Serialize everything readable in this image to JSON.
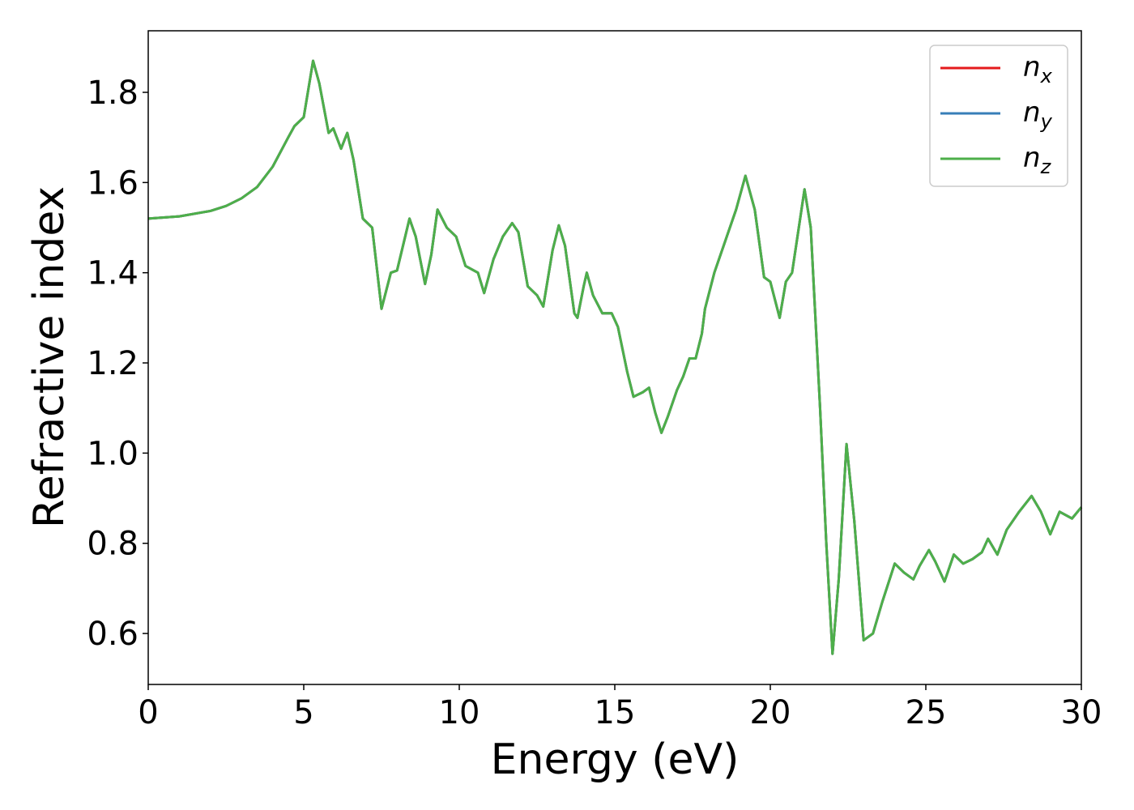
{
  "chart_data": {
    "type": "line",
    "xlabel": "Energy (eV)",
    "ylabel": "Refractive index",
    "x": [
      0,
      1,
      2,
      2.5,
      3,
      3.5,
      4,
      4.5,
      4.7,
      5.0,
      5.3,
      5.5,
      5.8,
      5.95,
      6.2,
      6.4,
      6.6,
      6.9,
      7.2,
      7.5,
      7.8,
      8.0,
      8.4,
      8.6,
      8.9,
      9.1,
      9.3,
      9.6,
      9.9,
      10.2,
      10.6,
      10.8,
      11.1,
      11.4,
      11.7,
      11.9,
      12.2,
      12.5,
      12.7,
      13.0,
      13.2,
      13.4,
      13.7,
      13.8,
      14.0,
      14.1,
      14.3,
      14.6,
      14.9,
      15.1,
      15.4,
      15.6,
      15.9,
      16.1,
      16.3,
      16.5,
      16.7,
      17.0,
      17.2,
      17.4,
      17.6,
      17.8,
      17.9,
      18.2,
      18.6,
      18.9,
      19.2,
      19.5,
      19.8,
      20.0,
      20.3,
      20.5,
      20.7,
      21.1,
      21.3,
      21.6,
      21.8,
      22.0,
      22.2,
      22.45,
      22.7,
      23.0,
      23.3,
      23.6,
      24.0,
      24.3,
      24.6,
      24.8,
      25.1,
      25.3,
      25.6,
      25.9,
      26.2,
      26.5,
      26.8,
      27.0,
      27.3,
      27.6,
      28.0,
      28.4,
      28.7,
      29.0,
      29.3,
      29.7,
      30.0
    ],
    "series": [
      {
        "name": "nx",
        "color": "#e41a1c",
        "values": [
          1.52,
          1.525,
          1.537,
          1.548,
          1.565,
          1.59,
          1.635,
          1.7,
          1.725,
          1.745,
          1.87,
          1.82,
          1.71,
          1.72,
          1.675,
          1.71,
          1.65,
          1.52,
          1.5,
          1.32,
          1.4,
          1.405,
          1.52,
          1.48,
          1.375,
          1.44,
          1.54,
          1.5,
          1.48,
          1.415,
          1.4,
          1.355,
          1.43,
          1.48,
          1.51,
          1.49,
          1.37,
          1.35,
          1.325,
          1.45,
          1.505,
          1.46,
          1.31,
          1.3,
          1.37,
          1.4,
          1.35,
          1.31,
          1.31,
          1.28,
          1.18,
          1.125,
          1.135,
          1.145,
          1.09,
          1.045,
          1.08,
          1.14,
          1.17,
          1.21,
          1.21,
          1.265,
          1.32,
          1.4,
          1.48,
          1.54,
          1.615,
          1.54,
          1.39,
          1.38,
          1.3,
          1.38,
          1.4,
          1.585,
          1.5,
          1.1,
          0.8,
          0.555,
          0.72,
          1.02,
          0.85,
          0.585,
          0.6,
          0.67,
          0.755,
          0.735,
          0.72,
          0.75,
          0.785,
          0.76,
          0.715,
          0.775,
          0.755,
          0.765,
          0.78,
          0.81,
          0.775,
          0.83,
          0.87,
          0.905,
          0.87,
          0.82,
          0.87,
          0.855,
          0.88
        ]
      },
      {
        "name": "ny",
        "color": "#377eb8",
        "values": [
          1.52,
          1.525,
          1.537,
          1.548,
          1.565,
          1.59,
          1.635,
          1.7,
          1.725,
          1.745,
          1.87,
          1.82,
          1.71,
          1.72,
          1.675,
          1.71,
          1.65,
          1.52,
          1.5,
          1.32,
          1.4,
          1.405,
          1.52,
          1.48,
          1.375,
          1.44,
          1.54,
          1.5,
          1.48,
          1.415,
          1.4,
          1.355,
          1.43,
          1.48,
          1.51,
          1.49,
          1.37,
          1.35,
          1.325,
          1.45,
          1.505,
          1.46,
          1.31,
          1.3,
          1.37,
          1.4,
          1.35,
          1.31,
          1.31,
          1.28,
          1.18,
          1.125,
          1.135,
          1.145,
          1.09,
          1.045,
          1.08,
          1.14,
          1.17,
          1.21,
          1.21,
          1.265,
          1.32,
          1.4,
          1.48,
          1.54,
          1.615,
          1.54,
          1.39,
          1.38,
          1.3,
          1.38,
          1.4,
          1.585,
          1.5,
          1.1,
          0.8,
          0.555,
          0.72,
          1.02,
          0.85,
          0.585,
          0.6,
          0.67,
          0.755,
          0.735,
          0.72,
          0.75,
          0.785,
          0.76,
          0.715,
          0.775,
          0.755,
          0.765,
          0.78,
          0.81,
          0.775,
          0.83,
          0.87,
          0.905,
          0.87,
          0.82,
          0.87,
          0.855,
          0.88
        ]
      },
      {
        "name": "nz",
        "color": "#4daf4a",
        "values": [
          1.52,
          1.525,
          1.537,
          1.548,
          1.565,
          1.59,
          1.635,
          1.7,
          1.725,
          1.745,
          1.87,
          1.82,
          1.71,
          1.72,
          1.675,
          1.71,
          1.65,
          1.52,
          1.5,
          1.32,
          1.4,
          1.405,
          1.52,
          1.48,
          1.375,
          1.44,
          1.54,
          1.5,
          1.48,
          1.415,
          1.4,
          1.355,
          1.43,
          1.48,
          1.51,
          1.49,
          1.37,
          1.35,
          1.325,
          1.45,
          1.505,
          1.46,
          1.31,
          1.3,
          1.37,
          1.4,
          1.35,
          1.31,
          1.31,
          1.28,
          1.18,
          1.125,
          1.135,
          1.145,
          1.09,
          1.045,
          1.08,
          1.14,
          1.17,
          1.21,
          1.21,
          1.265,
          1.32,
          1.4,
          1.48,
          1.54,
          1.615,
          1.54,
          1.39,
          1.38,
          1.3,
          1.38,
          1.4,
          1.585,
          1.5,
          1.1,
          0.8,
          0.555,
          0.72,
          1.02,
          0.85,
          0.585,
          0.6,
          0.67,
          0.755,
          0.735,
          0.72,
          0.75,
          0.785,
          0.76,
          0.715,
          0.775,
          0.755,
          0.765,
          0.78,
          0.81,
          0.775,
          0.83,
          0.87,
          0.905,
          0.87,
          0.82,
          0.87,
          0.855,
          0.88
        ]
      }
    ],
    "xlim": [
      0,
      30
    ],
    "xticks": [
      0,
      5,
      10,
      15,
      20,
      25,
      30
    ],
    "ylim": [
      0.487,
      1.9365
    ],
    "yticks": [
      0.6,
      0.8,
      {
        "value": 1,
        "label": "1.0"
      },
      1.2,
      1.4,
      1.6,
      1.8
    ],
    "grid": false,
    "legend": "upper right"
  }
}
